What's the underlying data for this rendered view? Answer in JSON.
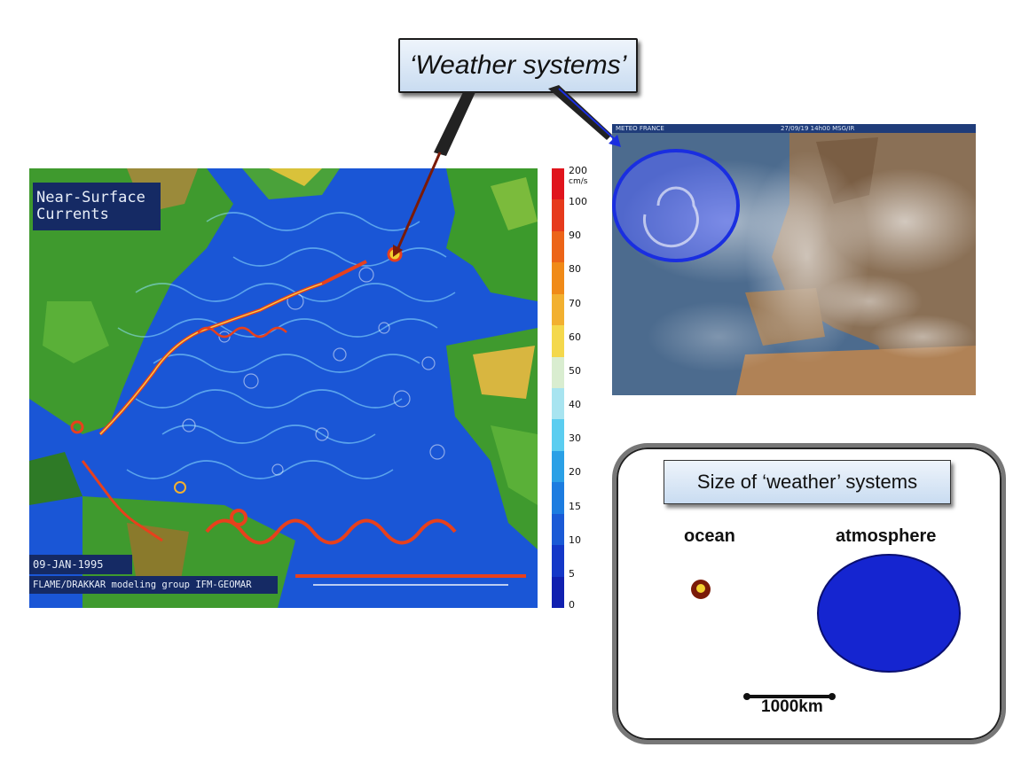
{
  "callout": {
    "text": "‘Weather systems’"
  },
  "ocean_map": {
    "title_line1": "Near-Surface",
    "title_line2": "Currents",
    "date": "09-JAN-1995",
    "credit": "FLAME/DRAKKAR modeling group IFM-GEOMAR"
  },
  "colorbar": {
    "unit": "cm/s",
    "ticks": [
      "200",
      "100",
      "90",
      "80",
      "70",
      "60",
      "50",
      "40",
      "30",
      "20",
      "15",
      "10",
      "5",
      "0"
    ],
    "colors": [
      "#e0141c",
      "#e63a1c",
      "#ec6418",
      "#f08a18",
      "#f2b030",
      "#f4d84c",
      "#d9edd0",
      "#a8e4f0",
      "#5bcdf0",
      "#2aa0e6",
      "#1c7ce0",
      "#1a5ad6",
      "#1438c8",
      "#1020b0"
    ]
  },
  "satellite": {
    "brand": "METEO FRANCE",
    "stamp": "27/09/19 14h00 MSG/IR"
  },
  "size_panel": {
    "title": "Size of ‘weather’ systems",
    "ocean_label": "ocean",
    "atmosphere_label": "atmosphere",
    "scale_label": "1000km"
  },
  "colors": {
    "ocean_blue": "#1a56d6",
    "atmosphere_blue": "#1525d0",
    "eddy_red": "#7a1a08",
    "callout_fill": "#c9dcf1"
  }
}
